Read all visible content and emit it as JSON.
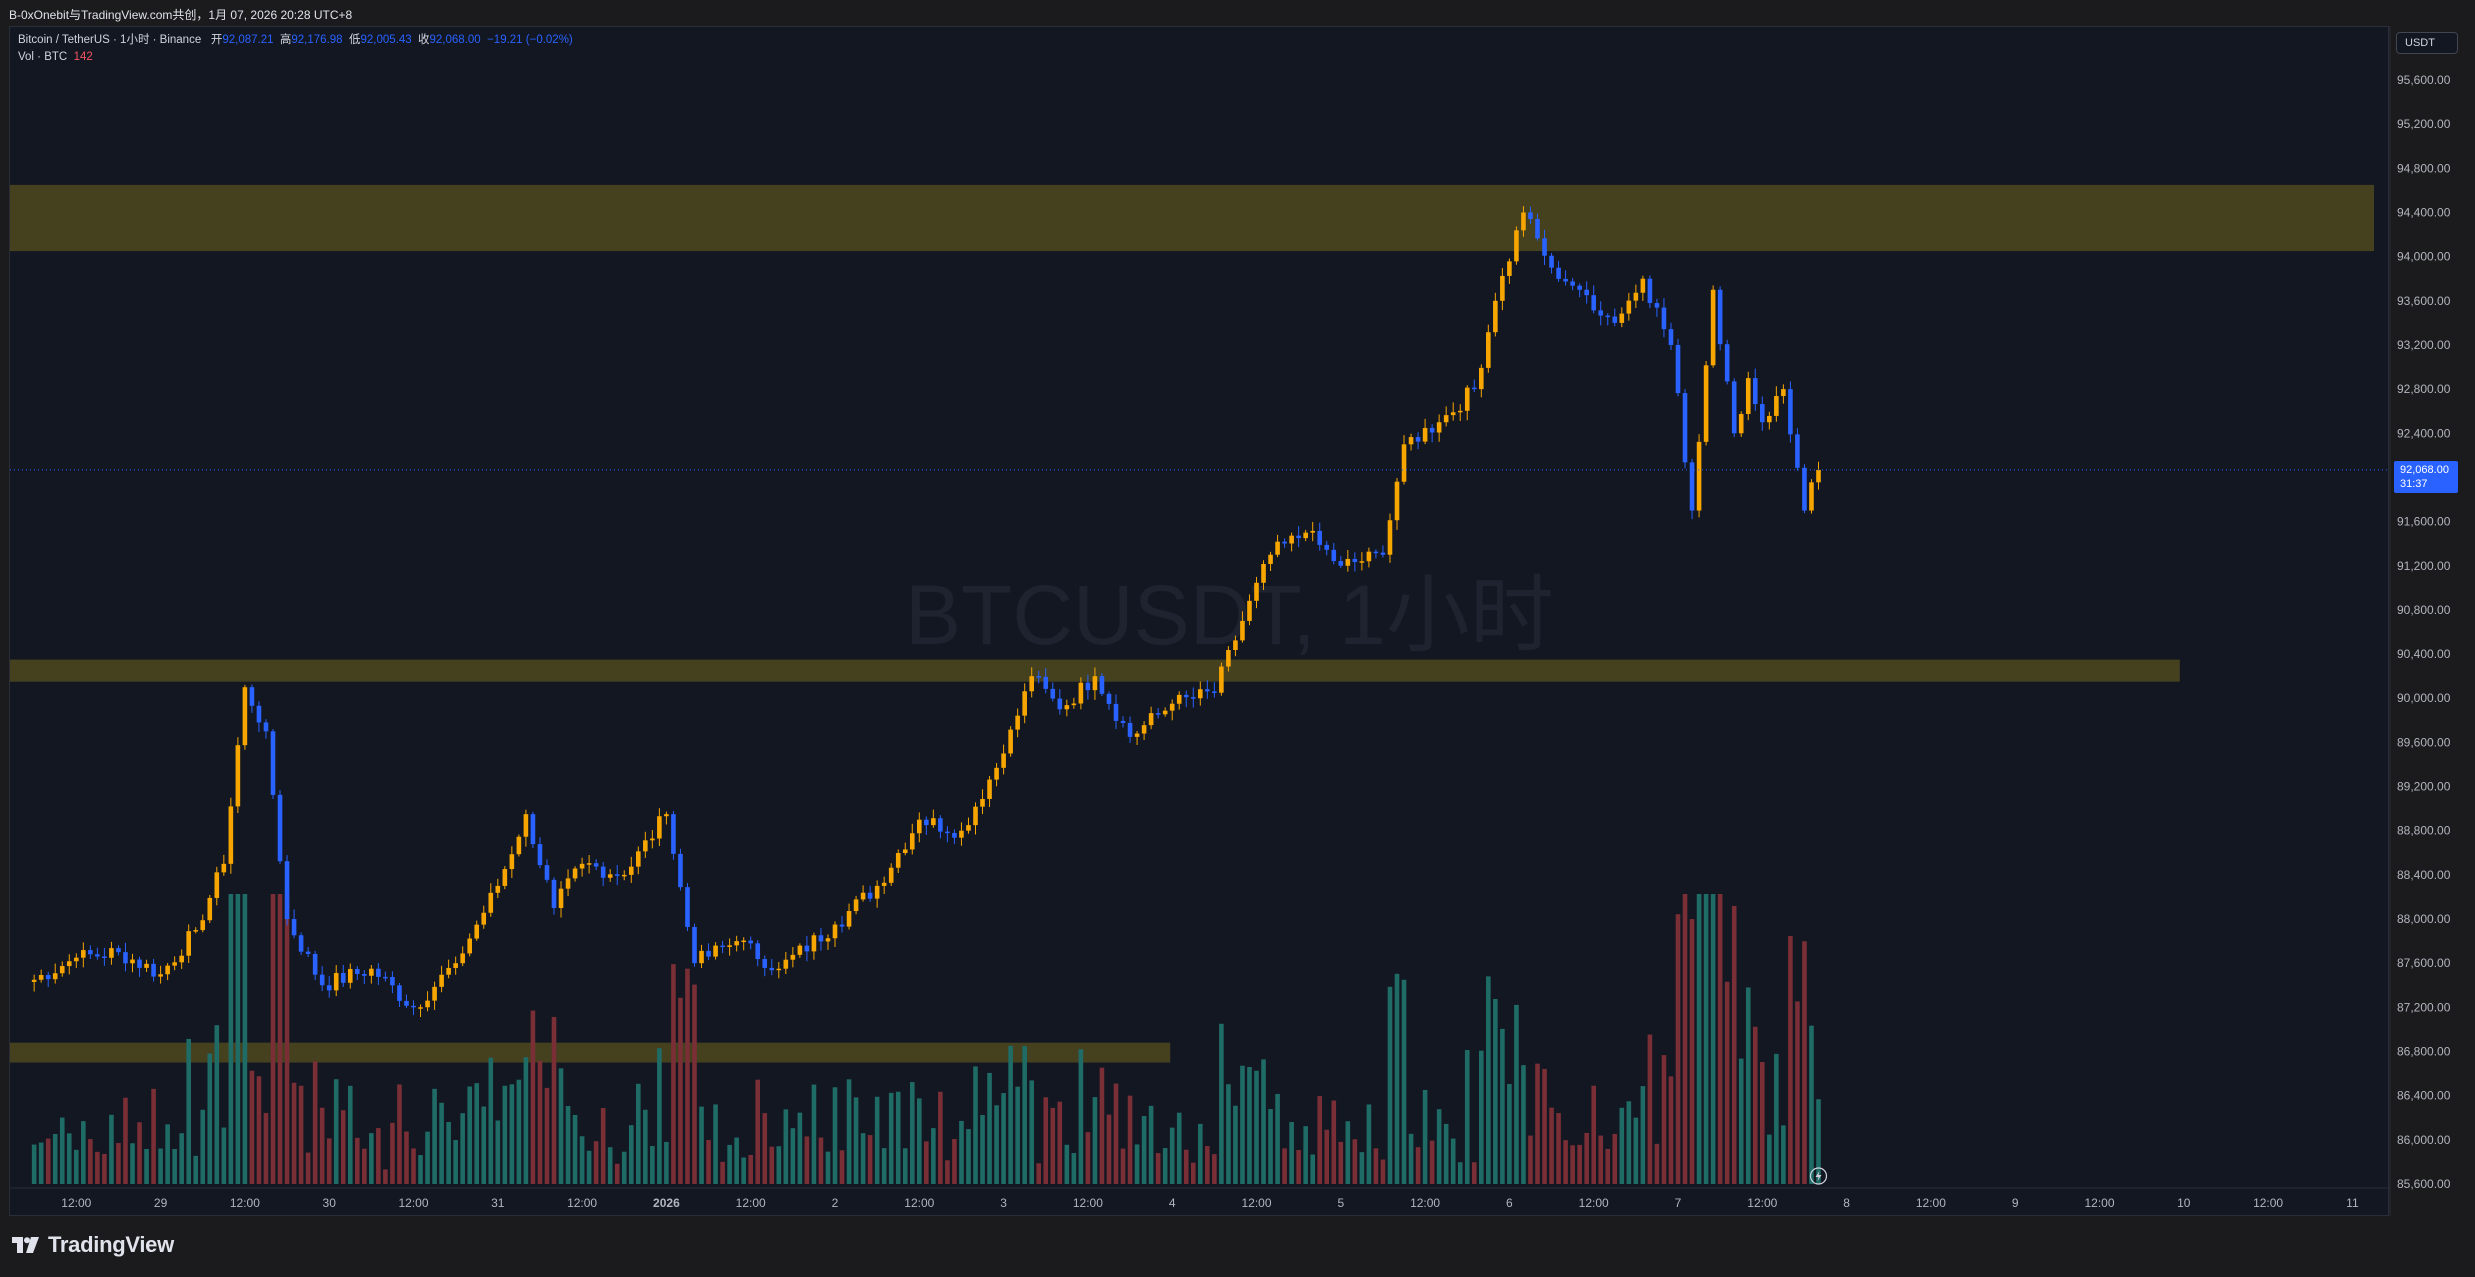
{
  "window": {
    "title": "B-0xOnebit与TradingView.com共创，1月 07, 2026 20:28 UTC+8"
  },
  "legend": {
    "symbol": "Bitcoin / TetherUS · 1小时 · Binance",
    "open_label": "开",
    "open": "92,087.21",
    "high_label": "高",
    "high": "92,176.98",
    "low_label": "低",
    "low": "92,005.43",
    "close_label": "收",
    "close": "92,068.00",
    "change": "−19.21 (−0.02%)",
    "vol_label": "Vol · BTC",
    "vol_value": "142"
  },
  "currency_button": "USDT",
  "last_price": {
    "price": "92,068.00",
    "countdown": "31:37"
  },
  "watermark": "BTCUSDT, 1小时",
  "footer": {
    "brand": "TradingView"
  },
  "colors": {
    "up": "#f7a600",
    "down": "#2962ff",
    "vol_up": "#1f6b66",
    "vol_down": "#7a2e35",
    "zone": "#4a4520",
    "bg": "#131722"
  },
  "chart_data": {
    "type": "candlestick",
    "title": "Bitcoin / TetherUS · 1小时 · Binance",
    "y_axis": {
      "range": [
        85600,
        95800
      ],
      "ticks": [
        "95,600.00",
        "95,200.00",
        "94,800.00",
        "94,400.00",
        "94,000.00",
        "93,600.00",
        "93,200.00",
        "92,800.00",
        "92,400.00",
        "92,000.00",
        "91,600.00",
        "91,200.00",
        "90,800.00",
        "90,400.00",
        "90,000.00",
        "89,600.00",
        "89,200.00",
        "88,800.00",
        "88,400.00",
        "88,000.00",
        "87,600.00",
        "87,200.00",
        "86,800.00",
        "86,400.00",
        "86,000.00",
        "85,600.00"
      ]
    },
    "x_axis": {
      "ticks": [
        "12:00",
        "29",
        "12:00",
        "30",
        "12:00",
        "31",
        "12:00",
        "2026",
        "12:00",
        "2",
        "12:00",
        "3",
        "12:00",
        "4",
        "12:00",
        "5",
        "12:00",
        "6",
        "12:00",
        "7",
        "12:00",
        "8",
        "12:00",
        "9",
        "12:00",
        "10",
        "12:00",
        "11"
      ]
    },
    "zones": [
      {
        "low": 94050,
        "high": 94650,
        "to": "right-edge"
      },
      {
        "low": 90150,
        "high": 90350,
        "to": "10-12:00"
      },
      {
        "low": 86700,
        "high": 86880,
        "to": "4-00:00"
      }
    ],
    "price_anchors": [
      {
        "t": "12-28 06:00",
        "p": 87450
      },
      {
        "t": "12-28 12:00",
        "p": 87650
      },
      {
        "t": "12-28 18:00",
        "p": 87700
      },
      {
        "t": "12-29 00:00",
        "p": 87500
      },
      {
        "t": "12-29 05:00",
        "p": 87900
      },
      {
        "t": "12-29 09:00",
        "p": 88500
      },
      {
        "t": "12-29 12:00",
        "p": 90100
      },
      {
        "t": "12-29 15:00",
        "p": 89700
      },
      {
        "t": "12-29 18:00",
        "p": 88000
      },
      {
        "t": "12-29 23:00",
        "p": 87400
      },
      {
        "t": "12-30 06:00",
        "p": 87550
      },
      {
        "t": "12-30 12:00",
        "p": 87200
      },
      {
        "t": "12-30 18:00",
        "p": 87600
      },
      {
        "t": "12-31 00:00",
        "p": 88300
      },
      {
        "t": "12-31 04:00",
        "p": 88950
      },
      {
        "t": "12-31 08:00",
        "p": 88100
      },
      {
        "t": "12-31 12:00",
        "p": 88500
      },
      {
        "t": "12-31 18:00",
        "p": 88400
      },
      {
        "t": "01-01 00:00",
        "p": 88950
      },
      {
        "t": "01-01 04:00",
        "p": 87600
      },
      {
        "t": "01-01 10:00",
        "p": 87800
      },
      {
        "t": "01-01 16:00",
        "p": 87550
      },
      {
        "t": "01-02 00:00",
        "p": 87950
      },
      {
        "t": "01-02 06:00",
        "p": 88300
      },
      {
        "t": "01-02 12:00",
        "p": 88900
      },
      {
        "t": "01-02 18:00",
        "p": 88800
      },
      {
        "t": "01-03 00:00",
        "p": 89500
      },
      {
        "t": "01-03 04:00",
        "p": 90200
      },
      {
        "t": "01-03 08:00",
        "p": 89900
      },
      {
        "t": "01-03 13:00",
        "p": 90200
      },
      {
        "t": "01-03 18:00",
        "p": 89650
      },
      {
        "t": "01-04 00:00",
        "p": 89950
      },
      {
        "t": "01-04 06:00",
        "p": 90050
      },
      {
        "t": "01-04 10:00",
        "p": 90700
      },
      {
        "t": "01-04 14:00",
        "p": 91300
      },
      {
        "t": "01-04 19:00",
        "p": 91500
      },
      {
        "t": "01-05 00:00",
        "p": 91200
      },
      {
        "t": "01-05 06:00",
        "p": 91300
      },
      {
        "t": "01-05 09:00",
        "p": 92300
      },
      {
        "t": "01-05 14:00",
        "p": 92500
      },
      {
        "t": "01-05 19:00",
        "p": 92800
      },
      {
        "t": "01-05 22:00",
        "p": 93600
      },
      {
        "t": "01-06 02:00",
        "p": 94400
      },
      {
        "t": "01-06 06:00",
        "p": 93900
      },
      {
        "t": "01-06 10:00",
        "p": 93700
      },
      {
        "t": "01-06 15:00",
        "p": 93400
      },
      {
        "t": "01-06 19:00",
        "p": 93800
      },
      {
        "t": "01-06 23:00",
        "p": 93200
      },
      {
        "t": "01-07 02:00",
        "p": 91700
      },
      {
        "t": "01-07 05:00",
        "p": 93700
      },
      {
        "t": "01-07 08:00",
        "p": 92400
      },
      {
        "t": "01-07 10:00",
        "p": 92900
      },
      {
        "t": "01-07 12:00",
        "p": 92500
      },
      {
        "t": "01-07 15:00",
        "p": 92800
      },
      {
        "t": "01-07 18:00",
        "p": 91700
      },
      {
        "t": "01-07 20:00",
        "p": 92068
      }
    ],
    "last_price": 92068,
    "volume": {
      "series": "Vol · BTC",
      "last": 142
    }
  }
}
